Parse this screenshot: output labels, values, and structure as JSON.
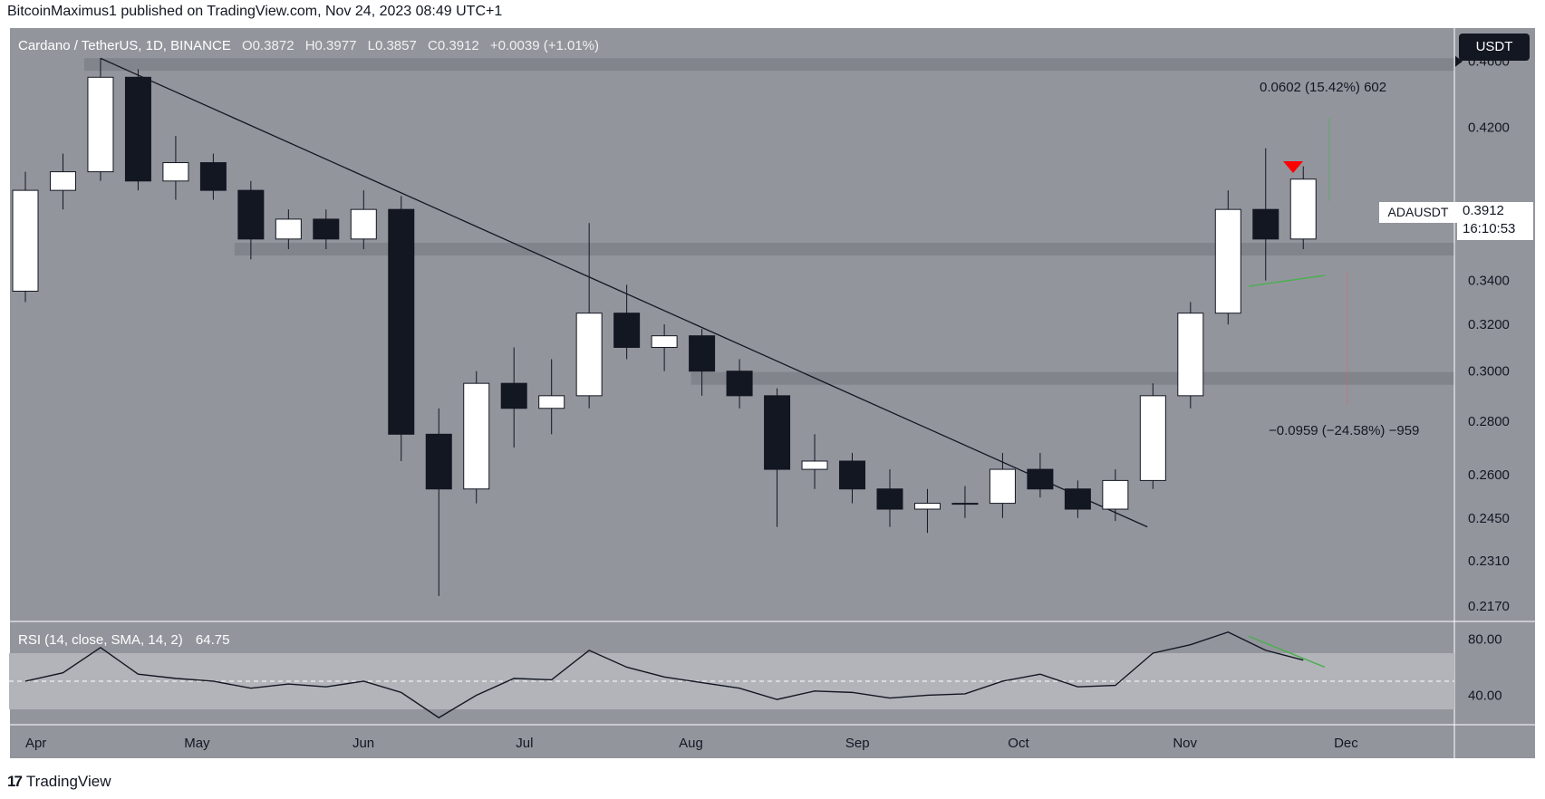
{
  "header": {
    "published_by": "BitcoinMaximus1 published on TradingView.com, Nov 24, 2023 08:49 UTC+1"
  },
  "legend": {
    "symbol": "Cardano / TetherUS, 1D, BINANCE",
    "open": "O0.3872",
    "high": "H0.3977",
    "low": "L0.3857",
    "close": "C0.3912",
    "change": "+0.0039 (+1.01%)"
  },
  "currency_badge": "USDT",
  "price_label": {
    "symbol": "ADAUSDT",
    "price": "0.3912",
    "countdown": "16:10:53"
  },
  "measure": {
    "up": "0.0602 (15.42%) 602",
    "down": "−0.0959 (−24.58%) −959"
  },
  "rsi": {
    "label": "RSI (14, close, SMA, 14, 2)",
    "value": "64.75"
  },
  "footer": {
    "brand": "TradingView"
  },
  "colors": {
    "background": "#93959d",
    "up_candle": "#ffffff",
    "down_candle": "#131722",
    "zone": "#7f8189",
    "marker": "#ff0000",
    "divergence": "#4caf50"
  },
  "chart_data": [
    {
      "type": "candlestick",
      "title": "Cardano / TetherUS, 1D, BINANCE",
      "x_ticks": [
        "Apr",
        "May",
        "Jun",
        "Jul",
        "Aug",
        "Sep",
        "Oct",
        "Nov",
        "Dec"
      ],
      "y_ticks": [
        "0.4600",
        "0.4200",
        "0.3400",
        "0.3200",
        "0.3000",
        "0.2800",
        "0.2600",
        "0.2450",
        "0.2310",
        "0.2170"
      ],
      "ylim": [
        0.2132,
        0.4822
      ],
      "scale": "log",
      "grid": false,
      "ohlc_weekly": [
        {
          "x": "2023-03-27",
          "o": 0.335,
          "h": 0.395,
          "l": 0.33,
          "c": 0.385
        },
        {
          "x": "2023-04-03",
          "o": 0.385,
          "h": 0.405,
          "l": 0.375,
          "c": 0.395
        },
        {
          "x": "2023-04-10",
          "o": 0.395,
          "h": 0.462,
          "l": 0.39,
          "c": 0.45
        },
        {
          "x": "2023-04-17",
          "o": 0.45,
          "h": 0.455,
          "l": 0.385,
          "c": 0.39
        },
        {
          "x": "2023-04-24",
          "o": 0.39,
          "h": 0.415,
          "l": 0.38,
          "c": 0.4
        },
        {
          "x": "2023-05-01",
          "o": 0.4,
          "h": 0.405,
          "l": 0.38,
          "c": 0.385
        },
        {
          "x": "2023-05-08",
          "o": 0.385,
          "h": 0.39,
          "l": 0.35,
          "c": 0.36
        },
        {
          "x": "2023-05-15",
          "o": 0.36,
          "h": 0.375,
          "l": 0.355,
          "c": 0.37
        },
        {
          "x": "2023-05-22",
          "o": 0.37,
          "h": 0.375,
          "l": 0.355,
          "c": 0.36
        },
        {
          "x": "2023-05-29",
          "o": 0.36,
          "h": 0.385,
          "l": 0.355,
          "c": 0.375
        },
        {
          "x": "2023-06-05",
          "o": 0.375,
          "h": 0.382,
          "l": 0.265,
          "c": 0.275
        },
        {
          "x": "2023-06-12",
          "o": 0.275,
          "h": 0.285,
          "l": 0.22,
          "c": 0.255
        },
        {
          "x": "2023-06-19",
          "o": 0.255,
          "h": 0.3,
          "l": 0.25,
          "c": 0.295
        },
        {
          "x": "2023-06-26",
          "o": 0.295,
          "h": 0.31,
          "l": 0.27,
          "c": 0.285
        },
        {
          "x": "2023-07-03",
          "o": 0.285,
          "h": 0.305,
          "l": 0.275,
          "c": 0.29
        },
        {
          "x": "2023-07-10",
          "o": 0.29,
          "h": 0.368,
          "l": 0.285,
          "c": 0.325
        },
        {
          "x": "2023-07-17",
          "o": 0.325,
          "h": 0.338,
          "l": 0.305,
          "c": 0.31
        },
        {
          "x": "2023-07-24",
          "o": 0.31,
          "h": 0.32,
          "l": 0.3,
          "c": 0.315
        },
        {
          "x": "2023-07-31",
          "o": 0.315,
          "h": 0.318,
          "l": 0.29,
          "c": 0.3
        },
        {
          "x": "2023-08-07",
          "o": 0.3,
          "h": 0.305,
          "l": 0.285,
          "c": 0.29
        },
        {
          "x": "2023-08-14",
          "o": 0.29,
          "h": 0.293,
          "l": 0.242,
          "c": 0.262
        },
        {
          "x": "2023-08-21",
          "o": 0.262,
          "h": 0.275,
          "l": 0.255,
          "c": 0.265
        },
        {
          "x": "2023-08-28",
          "o": 0.265,
          "h": 0.268,
          "l": 0.25,
          "c": 0.255
        },
        {
          "x": "2023-09-04",
          "o": 0.255,
          "h": 0.262,
          "l": 0.242,
          "c": 0.248
        },
        {
          "x": "2023-09-11",
          "o": 0.248,
          "h": 0.255,
          "l": 0.24,
          "c": 0.25
        },
        {
          "x": "2023-09-18",
          "o": 0.25,
          "h": 0.256,
          "l": 0.245,
          "c": 0.25
        },
        {
          "x": "2023-09-25",
          "o": 0.25,
          "h": 0.268,
          "l": 0.245,
          "c": 0.262
        },
        {
          "x": "2023-10-02",
          "o": 0.262,
          "h": 0.268,
          "l": 0.252,
          "c": 0.255
        },
        {
          "x": "2023-10-09",
          "o": 0.255,
          "h": 0.258,
          "l": 0.245,
          "c": 0.248
        },
        {
          "x": "2023-10-16",
          "o": 0.248,
          "h": 0.262,
          "l": 0.244,
          "c": 0.258
        },
        {
          "x": "2023-10-23",
          "o": 0.258,
          "h": 0.295,
          "l": 0.255,
          "c": 0.29
        },
        {
          "x": "2023-10-30",
          "o": 0.29,
          "h": 0.33,
          "l": 0.285,
          "c": 0.325
        },
        {
          "x": "2023-11-06",
          "o": 0.325,
          "h": 0.385,
          "l": 0.32,
          "c": 0.375
        },
        {
          "x": "2023-11-13",
          "o": 0.375,
          "h": 0.408,
          "l": 0.34,
          "c": 0.36
        },
        {
          "x": "2023-11-20",
          "o": 0.36,
          "h": 0.398,
          "l": 0.355,
          "c": 0.391
        }
      ],
      "horizontal_zones": [
        {
          "from": "2023-04-10",
          "level": 0.458
        },
        {
          "from": "2023-05-08",
          "level": 0.355
        },
        {
          "from": "2023-08-01",
          "level": 0.297
        }
      ],
      "trendline": [
        {
          "x": "2023-04-13",
          "y": 0.462
        },
        {
          "x": "2023-10-25",
          "y": 0.242
        }
      ],
      "price_marker": 0.46
    },
    {
      "type": "line",
      "title": "RSI (14, close, SMA, 14, 2)",
      "y_ticks": [
        "80.00",
        "40.00"
      ],
      "ylim": [
        19,
        90
      ],
      "band": [
        30,
        70
      ],
      "midline": 50,
      "x": [
        "2023-03-27",
        "2023-04-03",
        "2023-04-10",
        "2023-04-17",
        "2023-04-24",
        "2023-05-01",
        "2023-05-08",
        "2023-05-15",
        "2023-05-22",
        "2023-05-29",
        "2023-06-05",
        "2023-06-12",
        "2023-06-19",
        "2023-06-26",
        "2023-07-03",
        "2023-07-10",
        "2023-07-17",
        "2023-07-24",
        "2023-07-31",
        "2023-08-07",
        "2023-08-14",
        "2023-08-21",
        "2023-08-28",
        "2023-09-04",
        "2023-09-11",
        "2023-09-18",
        "2023-09-25",
        "2023-10-02",
        "2023-10-09",
        "2023-10-16",
        "2023-10-23",
        "2023-10-30",
        "2023-11-06",
        "2023-11-13",
        "2023-11-20"
      ],
      "values": [
        50,
        56,
        74,
        55,
        52,
        50,
        45,
        48,
        46,
        50,
        42,
        24,
        40,
        52,
        51,
        72,
        60,
        53,
        49,
        45,
        37,
        43,
        42,
        38,
        40,
        41,
        50,
        55,
        46,
        47,
        70,
        76,
        85,
        72,
        65
      ]
    }
  ]
}
